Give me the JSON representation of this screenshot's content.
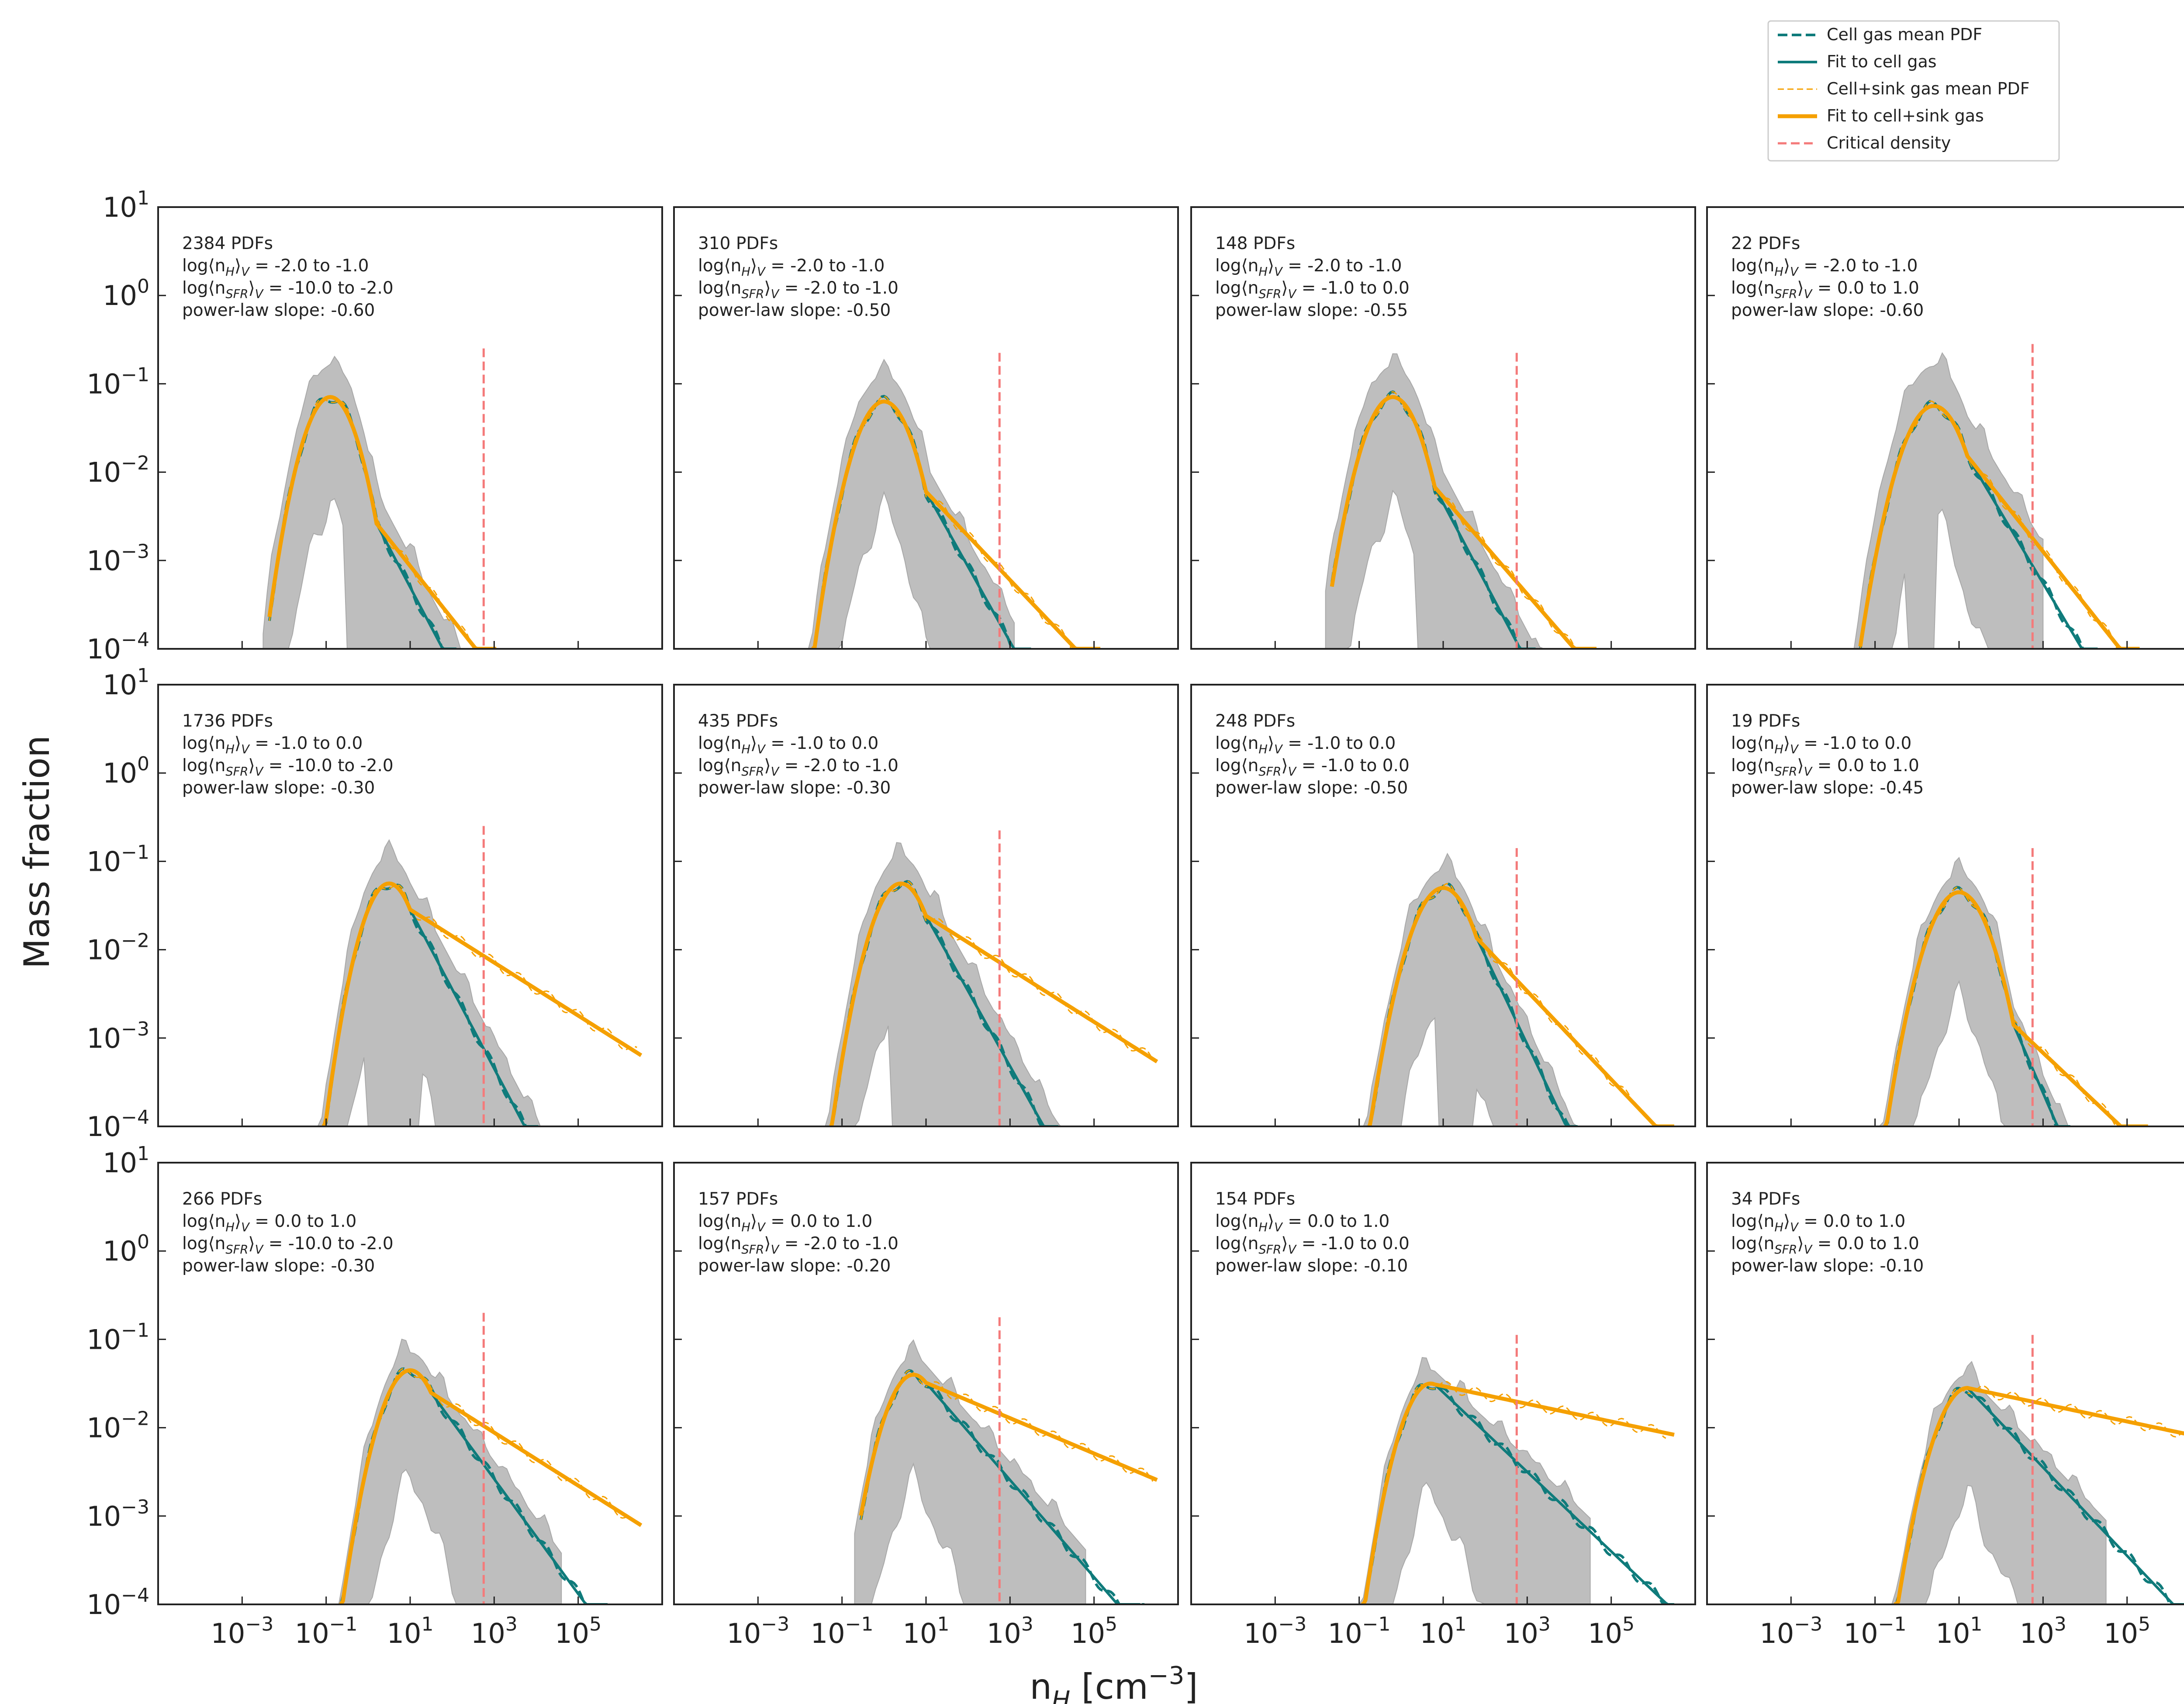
{
  "figure": {
    "ylabel": "Mass fraction",
    "xlabel_main": "n",
    "xlabel_sub": "H",
    "xlabel_unit_pre": " [cm",
    "xlabel_unit_sup": "−3",
    "xlabel_unit_post": "]"
  },
  "legend": {
    "items": [
      {
        "label": "Cell gas mean PDF",
        "color": "#0f7b7b",
        "style": "dashed-thick"
      },
      {
        "label": "Fit to cell gas",
        "color": "#0f7b7b",
        "style": "solid"
      },
      {
        "label": "Cell+sink gas mean PDF",
        "color": "#f5a000",
        "style": "dashed-thin"
      },
      {
        "label": "Fit to cell+sink gas",
        "color": "#f5a000",
        "style": "solid-thick"
      },
      {
        "label": "Critical density",
        "color": "#f47a7a",
        "style": "dashed"
      }
    ]
  },
  "colors": {
    "cell": "#0f7b7b",
    "sink": "#f5a000",
    "critical": "#f47a7a",
    "band": "#bebebe",
    "band_edge": "#a8a8a8"
  },
  "chart_data": {
    "type": "line",
    "xscale": "log",
    "yscale": "log",
    "xlim_log10": [
      -5,
      7
    ],
    "ylim_log10": [
      -4,
      1
    ],
    "x_ticks": [
      {
        "base": "10",
        "exp": "−3",
        "log": -3
      },
      {
        "base": "10",
        "exp": "−1",
        "log": -1
      },
      {
        "base": "10",
        "exp": "1",
        "log": 1
      },
      {
        "base": "10",
        "exp": "3",
        "log": 3
      },
      {
        "base": "10",
        "exp": "5",
        "log": 5
      }
    ],
    "y_ticks": [
      {
        "base": "10",
        "exp": "1",
        "log": 1
      },
      {
        "base": "10",
        "exp": "0",
        "log": 0
      },
      {
        "base": "10",
        "exp": "−1",
        "log": -1
      },
      {
        "base": "10",
        "exp": "−2",
        "log": -2
      },
      {
        "base": "10",
        "exp": "−3",
        "log": -3
      },
      {
        "base": "10",
        "exp": "−4",
        "log": -4
      }
    ],
    "critical_density_log10": 2.75,
    "panels": [
      {
        "pdfs": "2384 PDFs",
        "nh": "-2.0 to -1.0",
        "nsfr": "-10.0 to -2.0",
        "slope": "-0.60",
        "slope_value": -0.6,
        "peak_x_log10": -0.9,
        "peak_y_log10": -1.15,
        "sigma": 0.65,
        "pl_start_log10": 0.2,
        "cell_slope": -0.9,
        "sink_end_log10": 3.3,
        "cell_end_log10": 2.7,
        "band_x_log10": [
          -2.5,
          3.2
        ],
        "band_max_offset": 0.35,
        "crit_top_log10": -0.6,
        "band_hole": [
          -0.5,
          0.2
        ]
      },
      {
        "pdfs": "310 PDFs",
        "nh": "-2.0 to -1.0",
        "nsfr": "-2.0 to -1.0",
        "slope": "-0.50",
        "slope_value": -0.5,
        "peak_x_log10": 0.0,
        "peak_y_log10": -1.2,
        "sigma": 0.7,
        "pl_start_log10": 1.0,
        "cell_slope": -0.85,
        "sink_end_log10": 5.0,
        "cell_end_log10": 4.5,
        "band_x_log10": [
          -2.0,
          3.1
        ],
        "band_max_offset": 0.3,
        "crit_top_log10": -0.65,
        "band_hole": null
      },
      {
        "pdfs": "148 PDFs",
        "nh": "-2.0 to -1.0",
        "nsfr": "-1.0 to 0.0",
        "slope": "-0.55",
        "slope_value": -0.55,
        "peak_x_log10": -0.2,
        "peak_y_log10": -1.15,
        "sigma": 0.7,
        "pl_start_log10": 0.8,
        "cell_slope": -0.9,
        "sink_end_log10": 5.0,
        "cell_end_log10": 4.3,
        "band_x_log10": [
          -1.8,
          3.5
        ],
        "band_max_offset": 0.35,
        "crit_top_log10": -0.65,
        "band_hole": [
          0.4,
          0.9
        ]
      },
      {
        "pdfs": "22 PDFs",
        "nh": "-2.0 to -1.0",
        "nsfr": "0.0 to 1.0",
        "slope": "-0.60",
        "slope_value": -0.6,
        "peak_x_log10": 0.4,
        "peak_y_log10": -1.25,
        "sigma": 0.75,
        "pl_start_log10": 1.2,
        "cell_slope": -0.8,
        "sink_end_log10": 5.9,
        "cell_end_log10": 6.0,
        "band_x_log10": [
          -1.5,
          3.0
        ],
        "band_max_offset": 0.45,
        "crit_top_log10": -0.55,
        "band_hole": [
          -0.2,
          0.5
        ]
      },
      {
        "pdfs": "1736 PDFs",
        "nh": "-1.0 to 0.0",
        "nsfr": "-10.0 to -2.0",
        "slope": "-0.30",
        "slope_value": -0.3,
        "peak_x_log10": 0.5,
        "peak_y_log10": -1.25,
        "sigma": 0.65,
        "pl_start_log10": 1.0,
        "cell_slope": -0.9,
        "sink_end_log10": 6.4,
        "cell_end_log10": 4.0,
        "band_x_log10": [
          -1.8,
          4.5
        ],
        "band_max_offset": 0.3,
        "crit_top_log10": -0.6,
        "band_hole": [
          0.0,
          1.3
        ]
      },
      {
        "pdfs": "435 PDFs",
        "nh": "-1.0 to 0.0",
        "nsfr": "-2.0 to -1.0",
        "slope": "-0.30",
        "slope_value": -0.3,
        "peak_x_log10": 0.4,
        "peak_y_log10": -1.25,
        "sigma": 0.7,
        "pl_start_log10": 1.0,
        "cell_slope": -0.85,
        "sink_end_log10": 6.4,
        "cell_end_log10": 4.3,
        "band_x_log10": [
          -1.6,
          4.8
        ],
        "band_max_offset": 0.3,
        "crit_top_log10": -0.65,
        "band_hole": [
          0.2,
          1.6
        ]
      },
      {
        "pdfs": "248 PDFs",
        "nh": "-1.0 to 0.0",
        "nsfr": "-1.0 to 0.0",
        "slope": "-0.50",
        "slope_value": -0.5,
        "peak_x_log10": 1.0,
        "peak_y_log10": -1.3,
        "sigma": 0.75,
        "pl_start_log10": 1.8,
        "cell_slope": -1.0,
        "sink_end_log10": 5.5,
        "cell_end_log10": 4.5,
        "band_x_log10": [
          -1.2,
          4.3
        ],
        "band_max_offset": 0.2,
        "crit_top_log10": -0.85,
        "band_hole": [
          0.8,
          1.8
        ]
      },
      {
        "pdfs": "19 PDFs",
        "nh": "-1.0 to 0.0",
        "nsfr": "0.0 to 1.0",
        "slope": "-0.45",
        "slope_value": -0.45,
        "peak_x_log10": 1.0,
        "peak_y_log10": -1.35,
        "sigma": 0.75,
        "pl_start_log10": 2.3,
        "cell_slope": -1.1,
        "sink_end_log10": 6.3,
        "cell_end_log10": 4.9,
        "band_x_log10": [
          -1.0,
          4.6
        ],
        "band_max_offset": 0.2,
        "crit_top_log10": -0.85,
        "band_hole": null
      },
      {
        "pdfs": "266 PDFs",
        "nh": "0.0 to 1.0",
        "nsfr": "-10.0 to -2.0",
        "slope": "-0.30",
        "slope_value": -0.3,
        "peak_x_log10": 1.0,
        "peak_y_log10": -1.35,
        "sigma": 0.7,
        "pl_start_log10": 1.5,
        "cell_slope": -0.65,
        "sink_end_log10": 6.2,
        "cell_end_log10": 6.2,
        "band_x_log10": [
          -0.8,
          4.6
        ],
        "band_max_offset": 0.2,
        "crit_top_log10": -0.7,
        "band_hole": null
      },
      {
        "pdfs": "157 PDFs",
        "nh": "0.0 to 1.0",
        "nsfr": "-2.0 to -1.0",
        "slope": "-0.20",
        "slope_value": -0.2,
        "peak_x_log10": 0.7,
        "peak_y_log10": -1.4,
        "sigma": 0.7,
        "pl_start_log10": 1.0,
        "cell_slope": -0.55,
        "sink_end_log10": 6.4,
        "cell_end_log10": 6.4,
        "band_x_log10": [
          -0.7,
          4.8
        ],
        "band_max_offset": 0.2,
        "crit_top_log10": -0.75,
        "band_hole": null
      },
      {
        "pdfs": "154 PDFs",
        "nh": "0.0 to 1.0",
        "nsfr": "-1.0 to 0.0",
        "slope": "-0.10",
        "slope_value": -0.1,
        "peak_x_log10": 0.7,
        "peak_y_log10": -1.5,
        "sigma": 0.7,
        "pl_start_log10": 0.8,
        "cell_slope": -0.45,
        "sink_end_log10": 6.3,
        "cell_end_log10": 6.3,
        "band_x_log10": [
          -1.2,
          4.5
        ],
        "band_max_offset": 0.15,
        "crit_top_log10": -0.95,
        "band_hole": null
      },
      {
        "pdfs": "34 PDFs",
        "nh": "0.0 to 1.0",
        "nsfr": "0.0 to 1.0",
        "slope": "-0.10",
        "slope_value": -0.1,
        "peak_x_log10": 1.2,
        "peak_y_log10": -1.55,
        "sigma": 0.75,
        "pl_start_log10": 1.2,
        "cell_slope": -0.5,
        "sink_end_log10": 6.3,
        "cell_end_log10": 6.3,
        "band_x_log10": [
          -1.0,
          4.5
        ],
        "band_max_offset": 0.15,
        "crit_top_log10": -0.95,
        "band_hole": null
      }
    ]
  }
}
